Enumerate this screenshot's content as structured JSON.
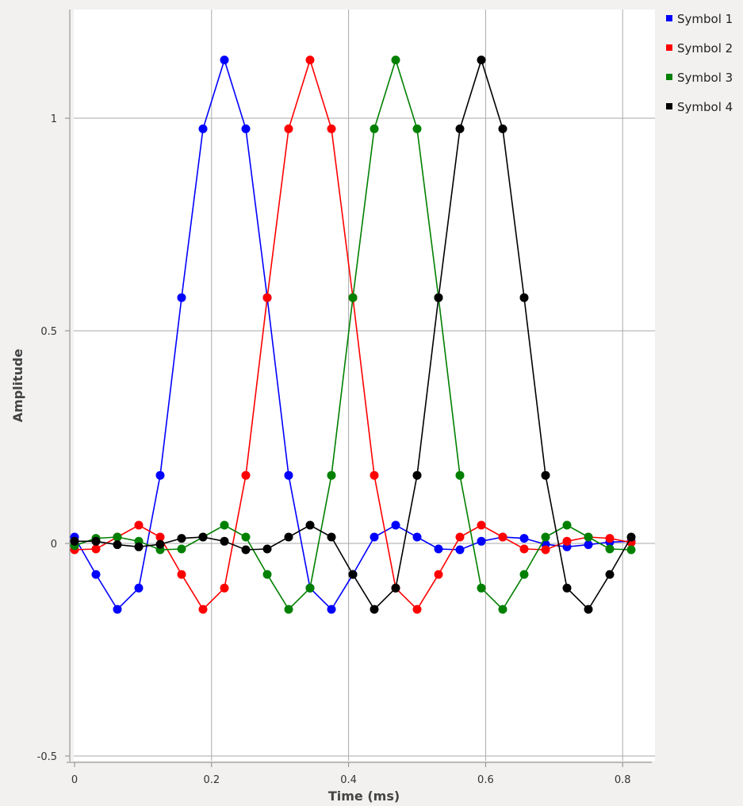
{
  "chart_data": {
    "type": "line",
    "xlabel": "Time (ms)",
    "ylabel": "Amplitude",
    "xlim": [
      0,
      0.85
    ],
    "ylim": [
      -0.5,
      1.25
    ],
    "grid": true,
    "legend_position": "top-right",
    "x_ticks": [
      "0",
      "0.2",
      "0.4",
      "0.6",
      "0.8"
    ],
    "y_ticks": [
      "-0.5",
      "0",
      "0.5",
      "1"
    ],
    "x": [
      0,
      0.03125,
      0.0625,
      0.09375,
      0.125,
      0.15625,
      0.1875,
      0.21875,
      0.25,
      0.28125,
      0.3125,
      0.34375,
      0.375,
      0.40625,
      0.4375,
      0.46875,
      0.5,
      0.53125,
      0.5625,
      0.59375,
      0.625,
      0.65625,
      0.6875,
      0.71875,
      0.75,
      0.78125,
      0.8125
    ],
    "series": [
      {
        "name": "Symbol 1",
        "color": "#0000ff",
        "values": [
          0.015,
          -0.073,
          -0.155,
          -0.105,
          0.16,
          0.578,
          0.975,
          1.137,
          0.975,
          0.578,
          0.16,
          -0.105,
          -0.155,
          -0.073,
          0.015,
          0.043,
          0.015,
          -0.013,
          -0.015,
          0.005,
          0.015,
          0.012,
          -0.002,
          -0.008,
          -0.003,
          0.003,
          0.005
        ]
      },
      {
        "name": "Symbol 2",
        "color": "#ff0000",
        "values": [
          -0.015,
          -0.013,
          0.015,
          0.043,
          0.015,
          -0.073,
          -0.155,
          -0.105,
          0.16,
          0.578,
          0.975,
          1.137,
          0.975,
          0.578,
          0.16,
          -0.105,
          -0.155,
          -0.073,
          0.015,
          0.043,
          0.015,
          -0.013,
          -0.015,
          0.005,
          0.015,
          0.012,
          0.002
        ]
      },
      {
        "name": "Symbol 3",
        "color": "#008000",
        "values": [
          -0.005,
          0.012,
          0.015,
          0.005,
          -0.015,
          -0.013,
          0.015,
          0.043,
          0.015,
          -0.073,
          -0.155,
          -0.105,
          0.16,
          0.578,
          0.975,
          1.137,
          0.975,
          0.578,
          0.16,
          -0.105,
          -0.155,
          -0.073,
          0.015,
          0.043,
          0.015,
          -0.013,
          -0.015
        ]
      },
      {
        "name": "Symbol 4",
        "color": "#000000",
        "values": [
          0.005,
          0.005,
          -0.003,
          -0.008,
          -0.002,
          0.012,
          0.015,
          0.005,
          -0.015,
          -0.013,
          0.015,
          0.043,
          0.015,
          -0.073,
          -0.155,
          -0.105,
          0.16,
          0.578,
          0.975,
          1.137,
          0.975,
          0.578,
          0.16,
          -0.105,
          -0.155,
          -0.073,
          0.015
        ]
      }
    ]
  }
}
